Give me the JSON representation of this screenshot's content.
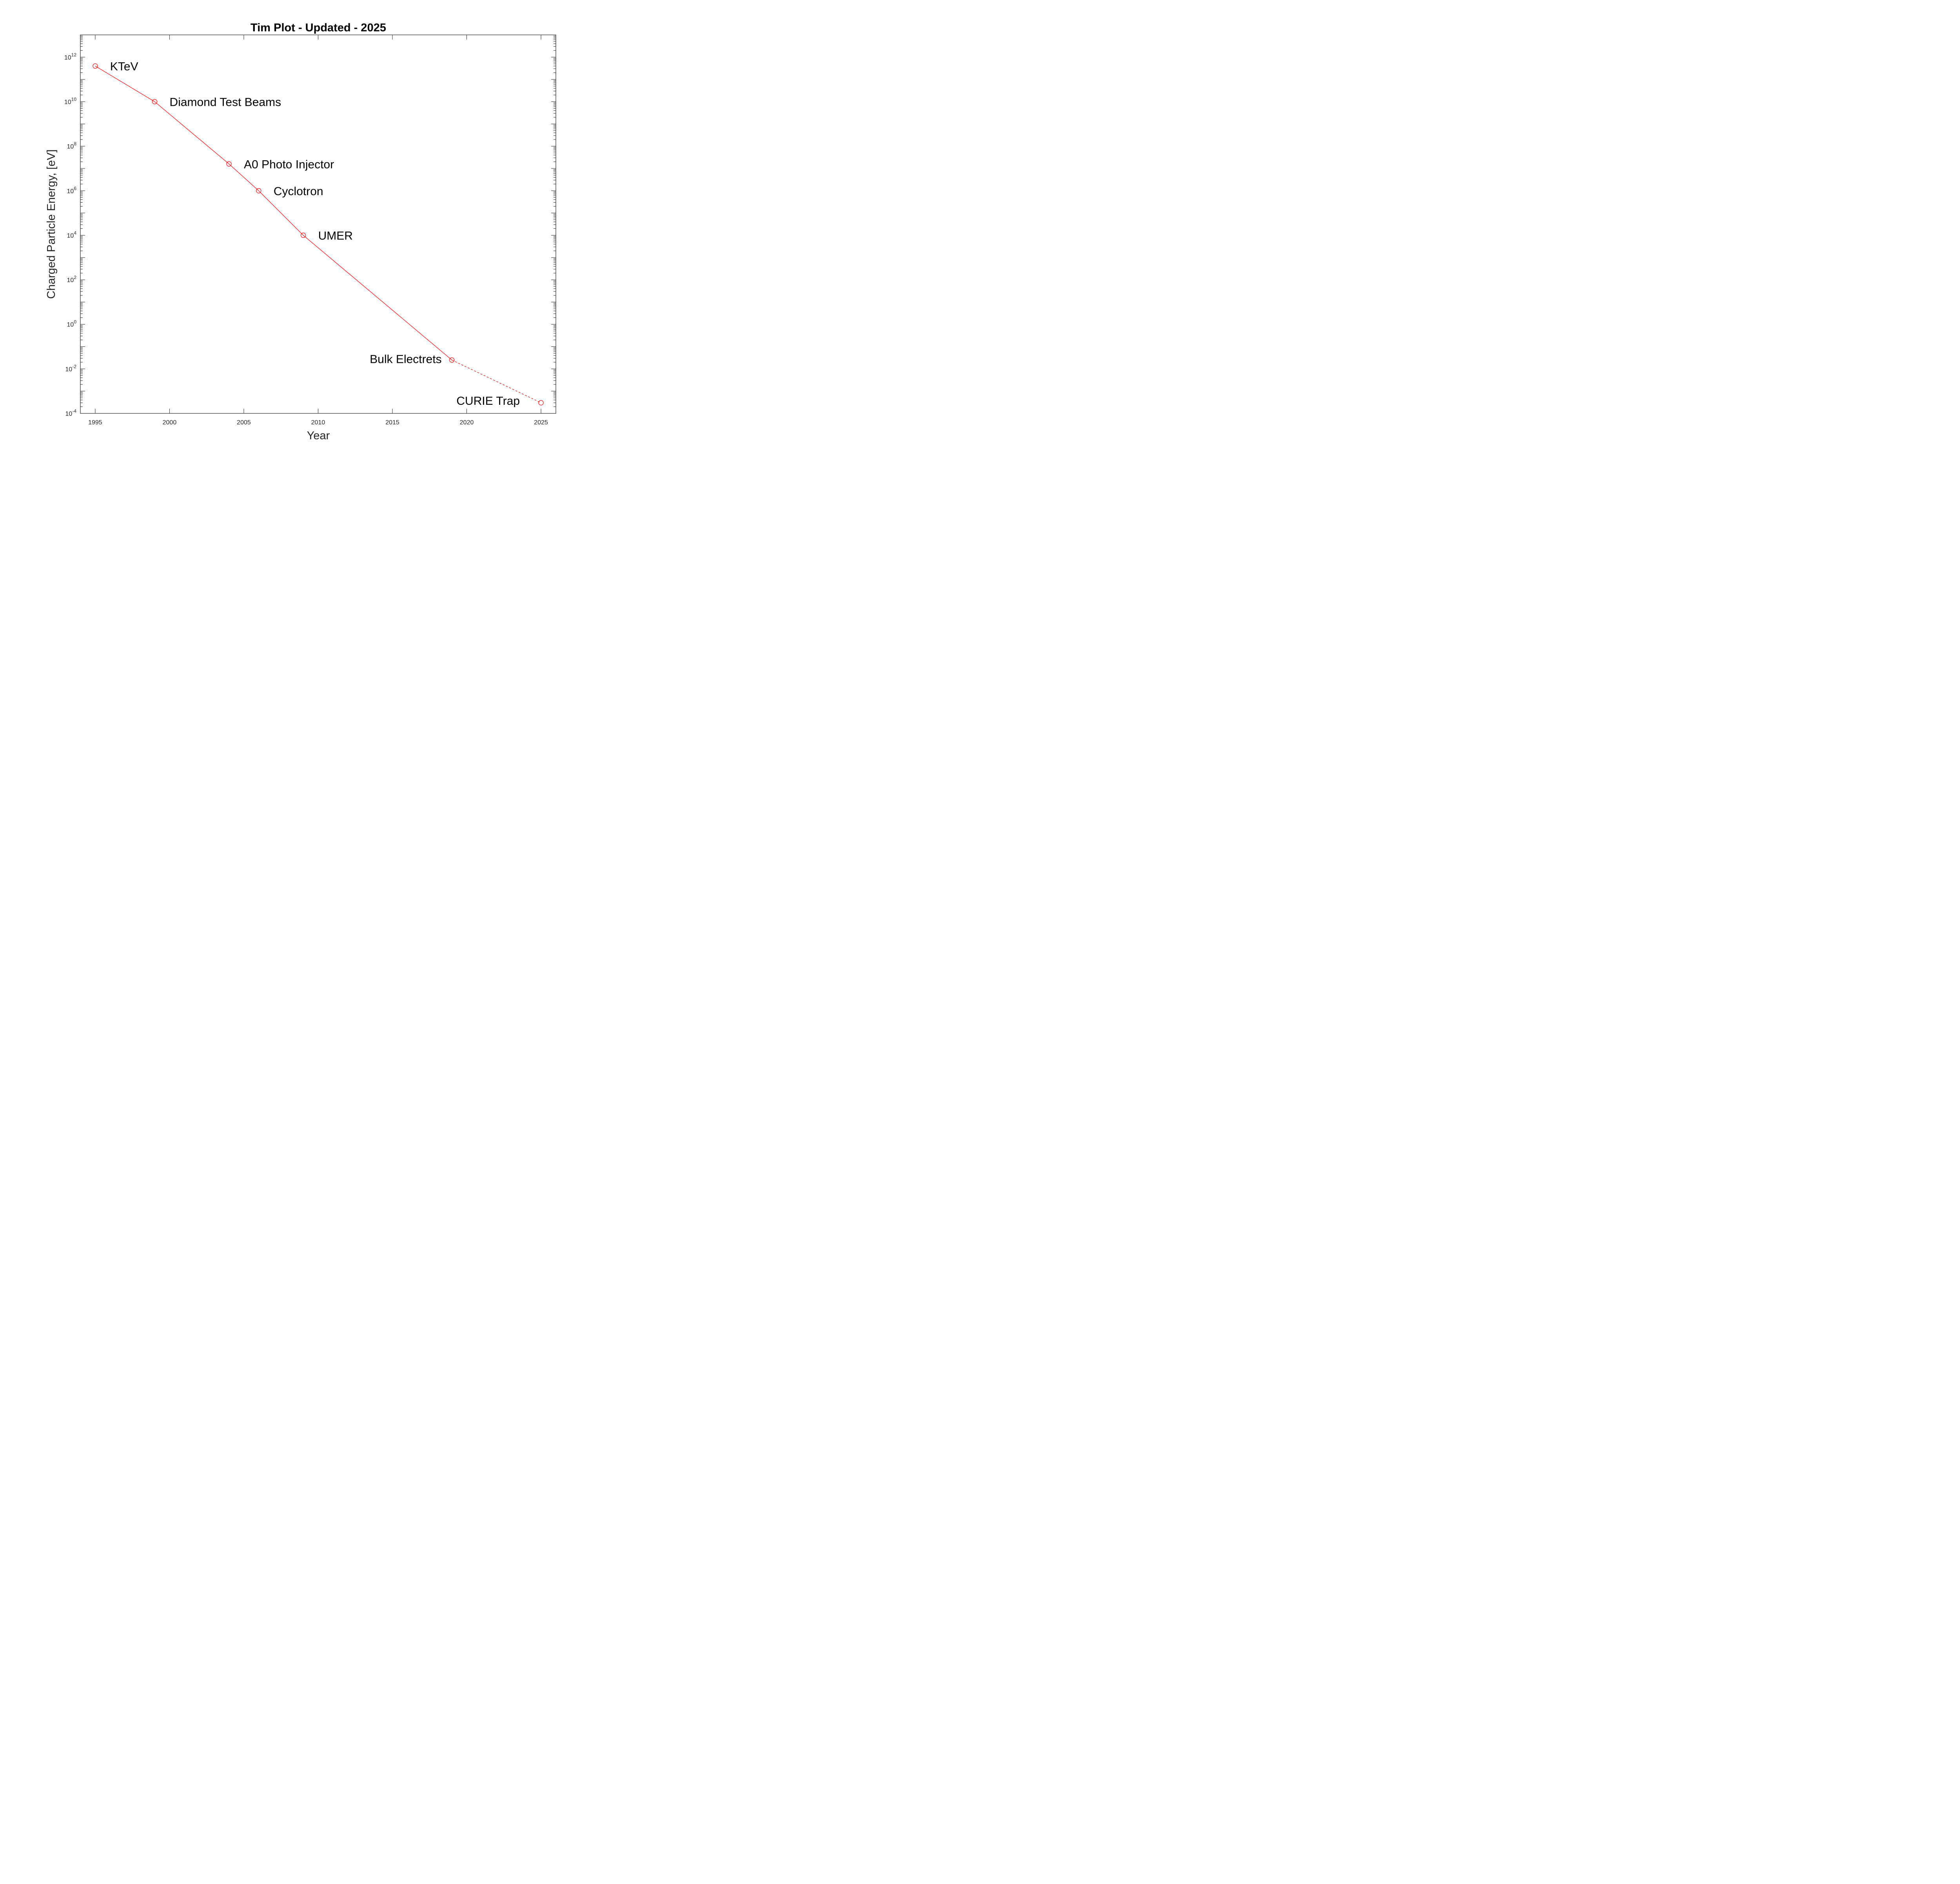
{
  "chart_data": {
    "type": "line",
    "title": "Tim Plot - Updated - 2025",
    "xlabel": "Year",
    "ylabel": "Charged Particle Energy, [eV]",
    "xlim": [
      1994,
      2026
    ],
    "ylim": [
      0.0001,
      10000000000000
    ],
    "yscale": "log",
    "grid": false,
    "x_ticks": [
      "1995",
      "2000",
      "2005",
      "2010",
      "2015",
      "2020",
      "2025"
    ],
    "y_ticks": [
      {
        "base": "10",
        "exp": "-4"
      },
      {
        "base": "10",
        "exp": "-2"
      },
      {
        "base": "10",
        "exp": "0"
      },
      {
        "base": "10",
        "exp": "2"
      },
      {
        "base": "10",
        "exp": "4"
      },
      {
        "base": "10",
        "exp": "6"
      },
      {
        "base": "10",
        "exp": "8"
      },
      {
        "base": "10",
        "exp": "10"
      },
      {
        "base": "10",
        "exp": "12"
      }
    ],
    "color": "#ff0000",
    "marker": "circle",
    "points": [
      {
        "label": "KTeV",
        "x": 1995,
        "y": 400000000000
      },
      {
        "label": "Diamond Test Beams",
        "x": 1999,
        "y": 10000000000
      },
      {
        "label": "A0 Photo Injector",
        "x": 2004,
        "y": 16000000
      },
      {
        "label": "Cyclotron",
        "x": 2006,
        "y": 1000000
      },
      {
        "label": "UMER",
        "x": 2009,
        "y": 10000
      },
      {
        "label": "Bulk Electrets",
        "x": 2019,
        "y": 0.025
      },
      {
        "label": "CURIE Trap",
        "x": 2025,
        "y": 0.0003
      }
    ],
    "solid_segment_until_index": 5,
    "dashed_segment": "last"
  }
}
